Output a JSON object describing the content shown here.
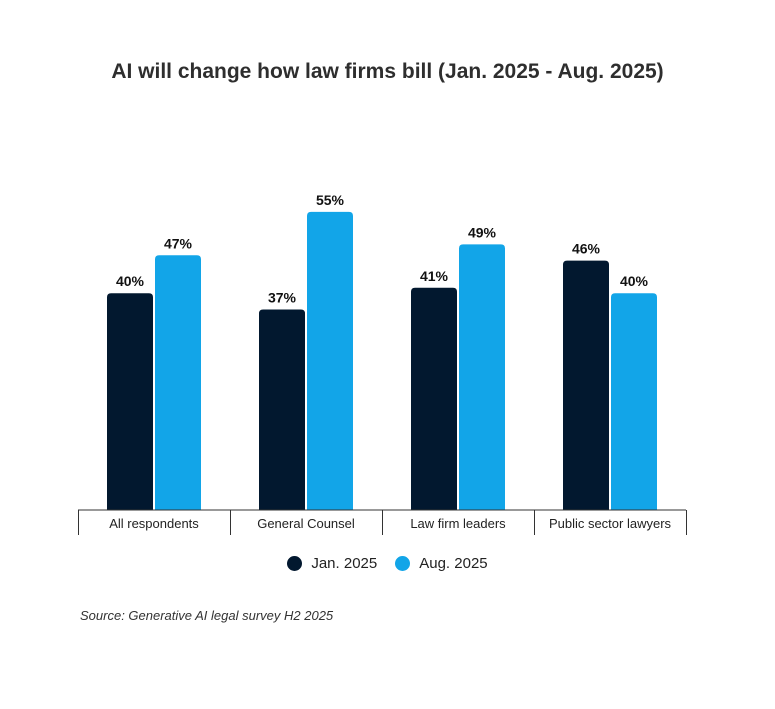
{
  "chart_data": {
    "type": "bar",
    "title": "AI will change how law firms bill (Jan. 2025 - Aug. 2025)",
    "categories": [
      "All respondents",
      "General Counsel",
      "Law firm leaders",
      "Public sector lawyers"
    ],
    "series": [
      {
        "name": "Jan. 2025",
        "values": [
          40,
          37,
          41,
          46
        ],
        "color": "#02182f"
      },
      {
        "name": "Aug. 2025",
        "values": [
          47,
          55,
          49,
          40
        ],
        "color": "#12a5e8"
      }
    ],
    "value_suffix": "%",
    "ylim": [
      0,
      55
    ],
    "grid": false,
    "legend": "bottom-center"
  },
  "source": "Source: Generative AI legal survey H2 2025"
}
